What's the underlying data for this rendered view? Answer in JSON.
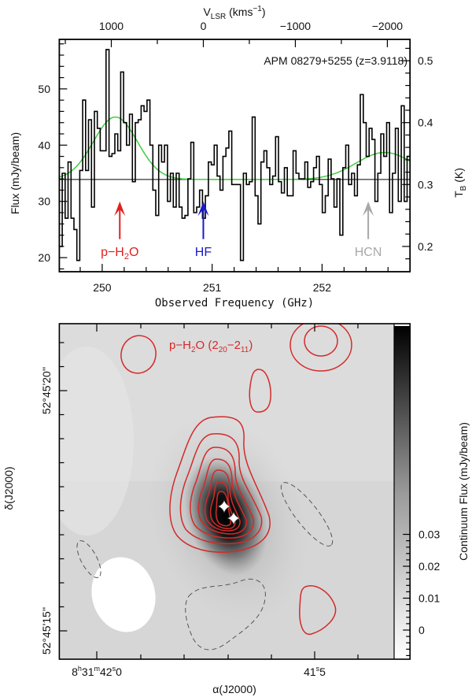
{
  "chart_data": [
    {
      "type": "line",
      "style": "step",
      "title": "APM 08279+5255 (z=3.9118)",
      "xlabel": "Observed Frequency (GHz)",
      "ylabel": "Flux (mJy/beam)",
      "x2label": {
        "main": "V",
        "sub": "LSR",
        "unit_pre": " (kms",
        "unit_sup": "−1",
        "unit_post": ")"
      },
      "y2label": {
        "main": "T",
        "sub": "B",
        "unit": " (K)"
      },
      "xlim": [
        249.61,
        252.8
      ],
      "ylim": [
        17.5,
        58.8
      ],
      "xticks": [
        "250",
        "251",
        "252"
      ],
      "yticks": [
        "20",
        "30",
        "40",
        "50"
      ],
      "x2ticks": [
        "1000",
        "0",
        "−1000",
        "−2000"
      ],
      "y2ticks": [
        "0.2",
        "0.3",
        "0.4",
        "0.5"
      ],
      "series": [
        {
          "color": "#000000",
          "values": [
            22,
            35,
            27,
            37,
            27,
            25,
            19.5,
            35.5,
            48,
            35.5,
            44.5,
            29,
            46,
            43,
            39,
            39,
            57,
            38,
            38.5,
            42,
            39,
            53,
            44,
            40,
            45.5,
            33.5,
            44,
            44.5,
            47,
            46,
            48,
            40,
            32,
            27.5,
            40,
            37,
            40,
            30,
            35,
            29,
            35,
            29,
            27,
            27.5,
            34,
            40.5,
            28,
            29,
            32,
            27,
            31,
            37,
            36.5,
            40,
            34.5,
            32,
            38,
            39.5,
            42.5,
            33,
            33,
            33,
            19.5,
            35,
            33,
            33.5,
            45,
            31,
            26,
            37,
            39,
            36,
            33,
            34.5,
            41.5,
            33.5,
            31.5,
            36,
            31,
            31,
            39,
            35,
            34,
            34,
            37,
            32.5,
            33.5,
            36,
            38,
            33,
            28,
            31,
            37.5,
            34,
            29,
            34,
            24,
            36,
            40,
            33,
            35,
            31,
            36.5,
            49,
            44,
            38,
            43,
            41,
            30,
            35,
            42,
            38,
            44,
            28,
            35,
            43,
            30,
            47,
            30,
            38
          ]
        }
      ],
      "fit": {
        "color": "#3fcf3f",
        "baseline": 33.9,
        "components": [
          {
            "center": 250.12,
            "peak": 45.0,
            "sigma": 0.2
          },
          {
            "center": 252.57,
            "peak": 38.7,
            "sigma": 0.26
          }
        ]
      },
      "baseline_color": "#000000",
      "line_markers": [
        {
          "label_pre": "p−H",
          "label_sub": "2",
          "label_post": "O",
          "freq": 250.16,
          "color": "#e02020"
        },
        {
          "label_pre": "HF",
          "label_sub": "",
          "label_post": "",
          "freq": 250.92,
          "color": "#1a1acc"
        },
        {
          "label_pre": "HCN",
          "label_sub": "",
          "label_post": "",
          "freq": 252.42,
          "color": "#a8a8a8"
        }
      ]
    },
    {
      "type": "heatmap",
      "colormap": "grayscale",
      "xlabel": "α(J2000)",
      "ylabel": "δ(J2000)",
      "xticks": [
        {
          "h": "8",
          "hu": "h",
          "m": "31",
          "mu": "m",
          "s": "42",
          "su": "s",
          "frac": "0"
        },
        {
          "s": "41",
          "su": "s",
          "frac": "5"
        }
      ],
      "yticks": [
        "52°45'20''",
        "52°45'15''"
      ],
      "colorbar_label": "Continuum Flux (mJy/beam)",
      "colorbar_ticks": [
        "0.03",
        "0.02",
        "0.01",
        "0"
      ],
      "contour_label": {
        "pre": "p−H",
        "sub": "2",
        "mid": "O (2",
        "sub2": "20",
        "dash": "−2",
        "sub3": "11",
        "post": ")"
      },
      "contour_color": "#d42a2a",
      "negative_contour_color": "#555555",
      "markers": [
        "star",
        "star"
      ]
    }
  ]
}
